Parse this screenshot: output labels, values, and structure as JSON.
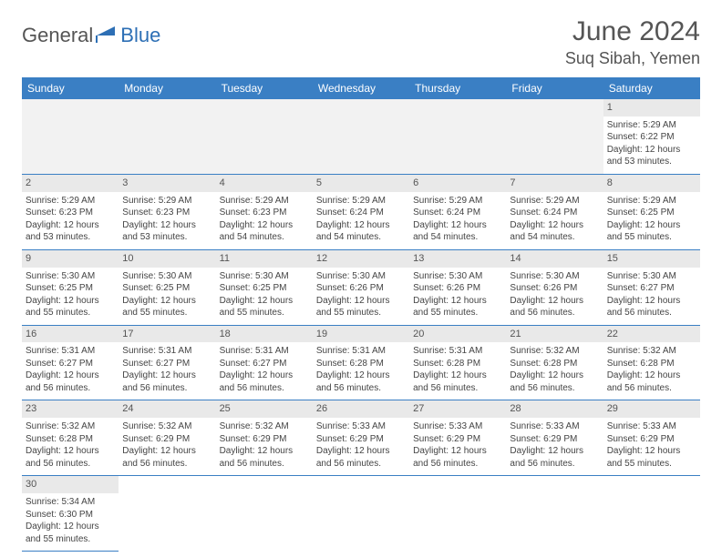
{
  "logo": {
    "text1": "General",
    "text2": "Blue"
  },
  "title": "June 2024",
  "location": "Suq Sibah, Yemen",
  "colors": {
    "header_bg": "#3a7fc4",
    "header_text": "#ffffff",
    "daynum_bg": "#e9e9e9",
    "border": "#3a7fc4",
    "body_text": "#444",
    "title_text": "#555"
  },
  "day_headers": [
    "Sunday",
    "Monday",
    "Tuesday",
    "Wednesday",
    "Thursday",
    "Friday",
    "Saturday"
  ],
  "weeks": [
    {
      "nums": [
        "",
        "",
        "",
        "",
        "",
        "",
        "1"
      ],
      "cells": [
        null,
        null,
        null,
        null,
        null,
        null,
        {
          "sr": "5:29 AM",
          "ss": "6:22 PM",
          "dl": "12 hours and 53 minutes."
        }
      ]
    },
    {
      "nums": [
        "2",
        "3",
        "4",
        "5",
        "6",
        "7",
        "8"
      ],
      "cells": [
        {
          "sr": "5:29 AM",
          "ss": "6:23 PM",
          "dl": "12 hours and 53 minutes."
        },
        {
          "sr": "5:29 AM",
          "ss": "6:23 PM",
          "dl": "12 hours and 53 minutes."
        },
        {
          "sr": "5:29 AM",
          "ss": "6:23 PM",
          "dl": "12 hours and 54 minutes."
        },
        {
          "sr": "5:29 AM",
          "ss": "6:24 PM",
          "dl": "12 hours and 54 minutes."
        },
        {
          "sr": "5:29 AM",
          "ss": "6:24 PM",
          "dl": "12 hours and 54 minutes."
        },
        {
          "sr": "5:29 AM",
          "ss": "6:24 PM",
          "dl": "12 hours and 54 minutes."
        },
        {
          "sr": "5:29 AM",
          "ss": "6:25 PM",
          "dl": "12 hours and 55 minutes."
        }
      ]
    },
    {
      "nums": [
        "9",
        "10",
        "11",
        "12",
        "13",
        "14",
        "15"
      ],
      "cells": [
        {
          "sr": "5:30 AM",
          "ss": "6:25 PM",
          "dl": "12 hours and 55 minutes."
        },
        {
          "sr": "5:30 AM",
          "ss": "6:25 PM",
          "dl": "12 hours and 55 minutes."
        },
        {
          "sr": "5:30 AM",
          "ss": "6:25 PM",
          "dl": "12 hours and 55 minutes."
        },
        {
          "sr": "5:30 AM",
          "ss": "6:26 PM",
          "dl": "12 hours and 55 minutes."
        },
        {
          "sr": "5:30 AM",
          "ss": "6:26 PM",
          "dl": "12 hours and 55 minutes."
        },
        {
          "sr": "5:30 AM",
          "ss": "6:26 PM",
          "dl": "12 hours and 56 minutes."
        },
        {
          "sr": "5:30 AM",
          "ss": "6:27 PM",
          "dl": "12 hours and 56 minutes."
        }
      ]
    },
    {
      "nums": [
        "16",
        "17",
        "18",
        "19",
        "20",
        "21",
        "22"
      ],
      "cells": [
        {
          "sr": "5:31 AM",
          "ss": "6:27 PM",
          "dl": "12 hours and 56 minutes."
        },
        {
          "sr": "5:31 AM",
          "ss": "6:27 PM",
          "dl": "12 hours and 56 minutes."
        },
        {
          "sr": "5:31 AM",
          "ss": "6:27 PM",
          "dl": "12 hours and 56 minutes."
        },
        {
          "sr": "5:31 AM",
          "ss": "6:28 PM",
          "dl": "12 hours and 56 minutes."
        },
        {
          "sr": "5:31 AM",
          "ss": "6:28 PM",
          "dl": "12 hours and 56 minutes."
        },
        {
          "sr": "5:32 AM",
          "ss": "6:28 PM",
          "dl": "12 hours and 56 minutes."
        },
        {
          "sr": "5:32 AM",
          "ss": "6:28 PM",
          "dl": "12 hours and 56 minutes."
        }
      ]
    },
    {
      "nums": [
        "23",
        "24",
        "25",
        "26",
        "27",
        "28",
        "29"
      ],
      "cells": [
        {
          "sr": "5:32 AM",
          "ss": "6:28 PM",
          "dl": "12 hours and 56 minutes."
        },
        {
          "sr": "5:32 AM",
          "ss": "6:29 PM",
          "dl": "12 hours and 56 minutes."
        },
        {
          "sr": "5:32 AM",
          "ss": "6:29 PM",
          "dl": "12 hours and 56 minutes."
        },
        {
          "sr": "5:33 AM",
          "ss": "6:29 PM",
          "dl": "12 hours and 56 minutes."
        },
        {
          "sr": "5:33 AM",
          "ss": "6:29 PM",
          "dl": "12 hours and 56 minutes."
        },
        {
          "sr": "5:33 AM",
          "ss": "6:29 PM",
          "dl": "12 hours and 56 minutes."
        },
        {
          "sr": "5:33 AM",
          "ss": "6:29 PM",
          "dl": "12 hours and 55 minutes."
        }
      ]
    },
    {
      "nums": [
        "30",
        "",
        "",
        "",
        "",
        "",
        ""
      ],
      "cells": [
        {
          "sr": "5:34 AM",
          "ss": "6:30 PM",
          "dl": "12 hours and 55 minutes."
        },
        null,
        null,
        null,
        null,
        null,
        null
      ]
    }
  ],
  "labels": {
    "sunrise": "Sunrise:",
    "sunset": "Sunset:",
    "daylight": "Daylight:"
  }
}
